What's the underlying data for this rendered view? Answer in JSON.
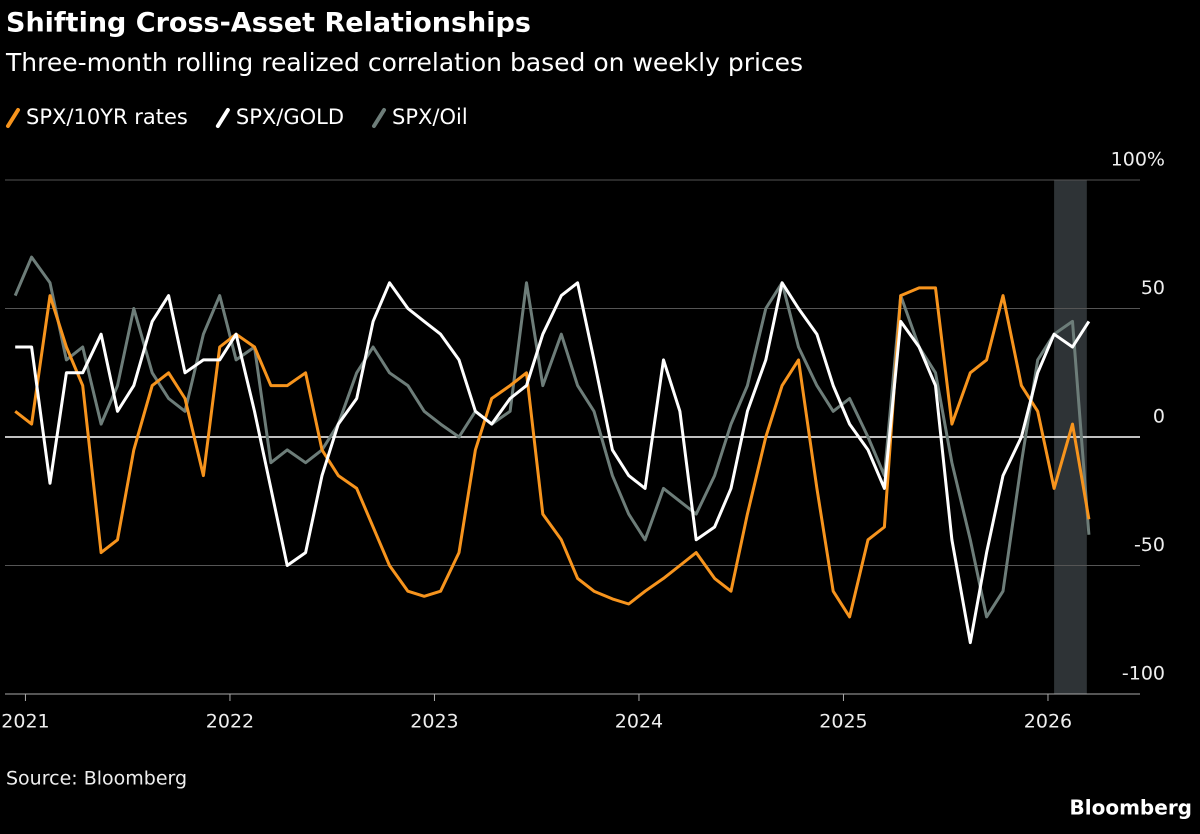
{
  "chart_data": {
    "type": "line",
    "title": "Shifting Cross-Asset Relationships",
    "subtitle": "Three-month rolling realized correlation based on weekly prices",
    "source": "Source: Bloomberg",
    "brand": "Bloomberg",
    "x": [
      2020.95,
      2021.03,
      2021.12,
      2021.2,
      2021.28,
      2021.37,
      2021.45,
      2021.53,
      2021.62,
      2021.7,
      2021.78,
      2021.87,
      2021.95,
      2022.03,
      2022.12,
      2022.2,
      2022.28,
      2022.37,
      2022.45,
      2022.53,
      2022.62,
      2022.7,
      2022.78,
      2022.87,
      2022.95,
      2023.03,
      2023.12,
      2023.2,
      2023.28,
      2023.37,
      2023.45,
      2023.53,
      2023.62,
      2023.7,
      2023.78,
      2023.87,
      2023.95,
      2024.03,
      2024.12,
      2024.2,
      2024.28,
      2024.37,
      2024.45,
      2024.53,
      2024.62,
      2024.7,
      2024.78,
      2024.87,
      2024.95,
      2025.03,
      2025.12,
      2025.2,
      2025.28,
      2025.37,
      2025.45,
      2025.53,
      2025.62,
      2025.7,
      2025.78,
      2025.87,
      2025.95,
      2026.03,
      2026.12,
      2026.2
    ],
    "xlim": [
      2020.9,
      2026.45
    ],
    "xticks": [
      2021,
      2022,
      2023,
      2024,
      2025,
      2026
    ],
    "ylim": [
      -100,
      100
    ],
    "yticks": [
      -100,
      -50,
      0,
      50,
      {
        "value": 100,
        "label": "100%"
      }
    ],
    "shaded": [
      2026.03,
      2026.19
    ],
    "series": [
      {
        "name": "SPX/10YR rates",
        "color": "#f7941d",
        "values": [
          10,
          5,
          55,
          35,
          20,
          -45,
          -40,
          -5,
          20,
          25,
          15,
          -15,
          35,
          40,
          35,
          20,
          20,
          25,
          -5,
          -15,
          -20,
          -35,
          -50,
          -60,
          -62,
          -60,
          -45,
          -5,
          15,
          20,
          25,
          -30,
          -40,
          -55,
          -60,
          -63,
          -65,
          -60,
          -55,
          -50,
          -45,
          -55,
          -60,
          -30,
          0,
          20,
          30,
          -20,
          -60,
          -70,
          -40,
          -35,
          55,
          58,
          58,
          5,
          25,
          30,
          55,
          20,
          10,
          -20,
          5,
          -32
        ]
      },
      {
        "name": "SPX/GOLD",
        "color": "#ffffff",
        "values": [
          35,
          35,
          -18,
          25,
          25,
          40,
          10,
          20,
          45,
          55,
          25,
          30,
          30,
          40,
          10,
          -20,
          -50,
          -45,
          -15,
          5,
          15,
          45,
          60,
          50,
          45,
          40,
          30,
          10,
          5,
          15,
          20,
          40,
          55,
          60,
          30,
          -5,
          -15,
          -20,
          30,
          10,
          -40,
          -35,
          -20,
          10,
          30,
          60,
          50,
          40,
          20,
          5,
          -5,
          -20,
          45,
          35,
          20,
          -40,
          -80,
          -45,
          -15,
          0,
          25,
          40,
          35,
          45
        ]
      },
      {
        "name": "SPX/Oil",
        "color": "#6d7d79",
        "values": [
          55,
          70,
          60,
          30,
          35,
          5,
          20,
          50,
          25,
          15,
          10,
          40,
          55,
          30,
          35,
          -10,
          -5,
          -10,
          -5,
          5,
          25,
          35,
          25,
          20,
          10,
          5,
          0,
          10,
          5,
          10,
          60,
          20,
          40,
          20,
          10,
          -15,
          -30,
          -40,
          -20,
          -25,
          -30,
          -15,
          5,
          20,
          50,
          60,
          35,
          20,
          10,
          15,
          0,
          -15,
          55,
          35,
          25,
          -10,
          -40,
          -70,
          -60,
          -10,
          30,
          40,
          45,
          -38
        ]
      }
    ]
  }
}
